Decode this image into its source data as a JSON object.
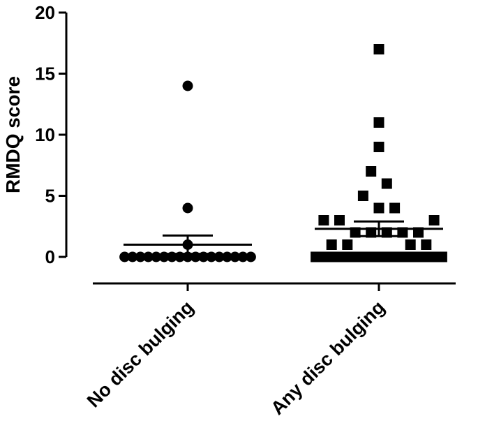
{
  "chart_data": {
    "type": "scatter",
    "title": "",
    "xlabel": "",
    "ylabel": "RMDQ score",
    "ylim": [
      0,
      20
    ],
    "yticks": [
      0,
      5,
      10,
      15,
      20
    ],
    "grid": false,
    "legend": "none",
    "categories": [
      "No disc bulging",
      "Any disc bulging"
    ],
    "series": [
      {
        "category": "No disc bulging",
        "marker": "circle",
        "mean": 1.0,
        "sem_upper": 1.75,
        "sem_lower": 0.25,
        "points": [
          {
            "y": 14,
            "offset": 0
          },
          {
            "y": 4,
            "offset": 0
          },
          {
            "y": 1,
            "offset": 0
          },
          {
            "y": 0,
            "offset": -8
          },
          {
            "y": 0,
            "offset": -7
          },
          {
            "y": 0,
            "offset": -6
          },
          {
            "y": 0,
            "offset": -5
          },
          {
            "y": 0,
            "offset": -4
          },
          {
            "y": 0,
            "offset": -3
          },
          {
            "y": 0,
            "offset": -2
          },
          {
            "y": 0,
            "offset": -1
          },
          {
            "y": 0,
            "offset": 0
          },
          {
            "y": 0,
            "offset": 1
          },
          {
            "y": 0,
            "offset": 2
          },
          {
            "y": 0,
            "offset": 3
          },
          {
            "y": 0,
            "offset": 4
          },
          {
            "y": 0,
            "offset": 5
          },
          {
            "y": 0,
            "offset": 6
          },
          {
            "y": 0,
            "offset": 7
          },
          {
            "y": 0,
            "offset": 8
          }
        ]
      },
      {
        "category": "Any disc bulging",
        "marker": "square",
        "mean": 2.3,
        "sem_upper": 2.9,
        "sem_lower": 1.7,
        "points": [
          {
            "y": 17,
            "offset": 0
          },
          {
            "y": 11,
            "offset": 0
          },
          {
            "y": 9,
            "offset": 0
          },
          {
            "y": 7,
            "offset": -1
          },
          {
            "y": 6,
            "offset": 1
          },
          {
            "y": 5,
            "offset": -2
          },
          {
            "y": 4,
            "offset": 0
          },
          {
            "y": 4,
            "offset": 2
          },
          {
            "y": 3,
            "offset": -7
          },
          {
            "y": 3,
            "offset": -5
          },
          {
            "y": 3,
            "offset": 7
          },
          {
            "y": 2,
            "offset": -3
          },
          {
            "y": 2,
            "offset": -1
          },
          {
            "y": 2,
            "offset": 1
          },
          {
            "y": 2,
            "offset": 3
          },
          {
            "y": 2,
            "offset": 5
          },
          {
            "y": 1,
            "offset": -6
          },
          {
            "y": 1,
            "offset": -4
          },
          {
            "y": 1,
            "offset": 4
          },
          {
            "y": 1,
            "offset": 6
          },
          {
            "y": 0,
            "offset": -8
          },
          {
            "y": 0,
            "offset": -7
          },
          {
            "y": 0,
            "offset": -6
          },
          {
            "y": 0,
            "offset": -5
          },
          {
            "y": 0,
            "offset": -4
          },
          {
            "y": 0,
            "offset": -3
          },
          {
            "y": 0,
            "offset": -2
          },
          {
            "y": 0,
            "offset": -1
          },
          {
            "y": 0,
            "offset": 0
          },
          {
            "y": 0,
            "offset": 1
          },
          {
            "y": 0,
            "offset": 2
          },
          {
            "y": 0,
            "offset": 3
          },
          {
            "y": 0,
            "offset": 4
          },
          {
            "y": 0,
            "offset": 5
          },
          {
            "y": 0,
            "offset": 6
          },
          {
            "y": 0,
            "offset": 7
          },
          {
            "y": 0,
            "offset": 8
          }
        ]
      }
    ],
    "marker_color": "#000000"
  }
}
